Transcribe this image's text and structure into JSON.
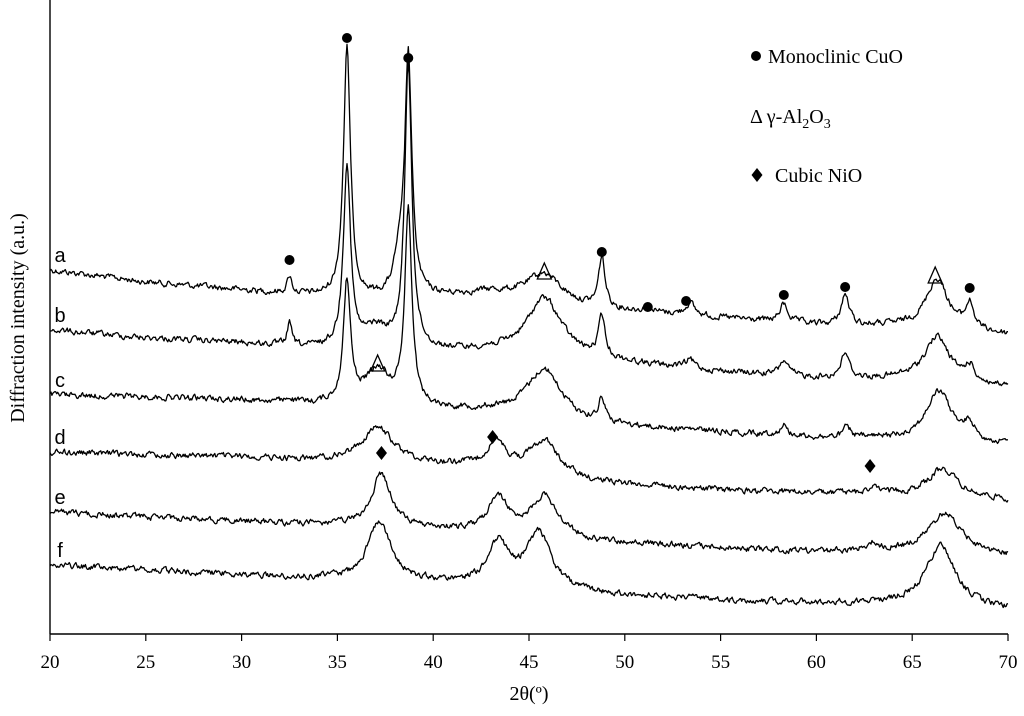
{
  "chart_data": {
    "type": "line",
    "xlabel": "2θ(º)",
    "ylabel": "Diffraction intensity (a.u.)",
    "xlim": [
      20,
      70
    ],
    "xticks": [
      20,
      25,
      30,
      35,
      40,
      45,
      50,
      55,
      60,
      65,
      70
    ],
    "grid": false,
    "legend_position": "top-right",
    "legend": [
      {
        "marker": "circle",
        "label": "Monoclinic CuO"
      },
      {
        "marker": "triangle",
        "label_prefix": "Δ γ-Al",
        "sub1": "2",
        "mid": "O",
        "sub2": "3"
      },
      {
        "marker": "diamond",
        "label": "Cubic NiO"
      }
    ],
    "series": [
      {
        "name": "a",
        "baseline": [
          [
            20,
            270
          ],
          [
            25,
            282
          ],
          [
            30,
            290
          ],
          [
            33,
            295
          ],
          [
            36,
            300
          ],
          [
            40,
            297
          ],
          [
            43,
            293
          ],
          [
            48,
            308
          ],
          [
            55,
            318
          ],
          [
            60,
            325
          ],
          [
            65,
            327
          ],
          [
            70,
            335
          ]
        ],
        "peaks": [
          [
            32.5,
            17,
            0.15
          ],
          [
            35.5,
            250,
            0.22
          ],
          [
            38.7,
            240,
            0.22
          ],
          [
            38.2,
            30,
            0.3
          ],
          [
            45.8,
            28,
            1.1
          ],
          [
            48.8,
            50,
            0.2
          ],
          [
            51.2,
            6,
            0.2
          ],
          [
            53.4,
            12,
            0.3
          ],
          [
            58.3,
            18,
            0.25
          ],
          [
            61.5,
            30,
            0.25
          ],
          [
            66.3,
            50,
            0.7
          ],
          [
            68.0,
            25,
            0.25
          ]
        ]
      },
      {
        "name": "b",
        "baseline": [
          [
            20,
            330
          ],
          [
            25,
            338
          ],
          [
            30,
            343
          ],
          [
            33,
            348
          ],
          [
            36,
            350
          ],
          [
            40,
            352
          ],
          [
            43,
            352
          ],
          [
            48,
            360
          ],
          [
            55,
            372
          ],
          [
            60,
            378
          ],
          [
            65,
            380
          ],
          [
            70,
            388
          ]
        ],
        "peaks": [
          [
            32.5,
            22,
            0.15
          ],
          [
            35.5,
            183,
            0.22
          ],
          [
            37.0,
            20,
            0.8
          ],
          [
            38.7,
            285,
            0.22
          ],
          [
            45.8,
            58,
            1.1
          ],
          [
            48.8,
            40,
            0.2
          ],
          [
            53.4,
            8,
            0.3
          ],
          [
            58.3,
            15,
            0.25
          ],
          [
            61.5,
            25,
            0.25
          ],
          [
            66.3,
            45,
            0.8
          ],
          [
            68.0,
            15,
            0.3
          ]
        ]
      },
      {
        "name": "c",
        "baseline": [
          [
            20,
            395
          ],
          [
            25,
            397
          ],
          [
            30,
            400
          ],
          [
            33,
            404
          ],
          [
            36,
            406
          ],
          [
            40,
            410
          ],
          [
            43,
            412
          ],
          [
            48,
            425
          ],
          [
            55,
            432
          ],
          [
            60,
            438
          ],
          [
            65,
            440
          ],
          [
            70,
            445
          ]
        ],
        "peaks": [
          [
            32.5,
            5,
            0.15
          ],
          [
            35.5,
            120,
            0.22
          ],
          [
            37.1,
            35,
            0.8
          ],
          [
            38.7,
            195,
            0.22
          ],
          [
            45.8,
            50,
            1.1
          ],
          [
            48.8,
            25,
            0.2
          ],
          [
            58.3,
            10,
            0.25
          ],
          [
            61.6,
            10,
            0.25
          ],
          [
            66.4,
            50,
            0.8
          ],
          [
            68.0,
            15,
            0.3
          ]
        ]
      },
      {
        "name": "d",
        "baseline": [
          [
            20,
            452
          ],
          [
            25,
            455
          ],
          [
            30,
            457
          ],
          [
            33,
            460
          ],
          [
            36,
            462
          ],
          [
            40,
            465
          ],
          [
            43,
            468
          ],
          [
            48,
            482
          ],
          [
            55,
            490
          ],
          [
            60,
            493
          ],
          [
            65,
            495
          ],
          [
            70,
            500
          ]
        ],
        "peaks": [
          [
            37.1,
            35,
            1.0
          ],
          [
            43.3,
            25,
            0.6
          ],
          [
            45.8,
            35,
            0.9
          ],
          [
            62.9,
            6,
            0.3
          ],
          [
            66.6,
            28,
            0.9
          ]
        ]
      },
      {
        "name": "e",
        "baseline": [
          [
            20,
            512
          ],
          [
            25,
            517
          ],
          [
            30,
            521
          ],
          [
            33,
            524
          ],
          [
            36,
            526
          ],
          [
            40,
            530
          ],
          [
            43,
            532
          ],
          [
            48,
            542
          ],
          [
            55,
            548
          ],
          [
            60,
            552
          ],
          [
            65,
            552
          ],
          [
            70,
            556
          ]
        ],
        "peaks": [
          [
            37.3,
            53,
            0.6
          ],
          [
            43.4,
            33,
            0.6
          ],
          [
            45.8,
            40,
            0.9
          ],
          [
            62.9,
            8,
            0.4
          ],
          [
            66.7,
            40,
            1.0
          ]
        ]
      },
      {
        "name": "f",
        "baseline": [
          [
            20,
            565
          ],
          [
            25,
            570
          ],
          [
            30,
            575
          ],
          [
            33,
            578
          ],
          [
            36,
            580
          ],
          [
            40,
            583
          ],
          [
            43,
            584
          ],
          [
            48,
            594
          ],
          [
            55,
            600
          ],
          [
            60,
            603
          ],
          [
            65,
            604
          ],
          [
            70,
            610
          ]
        ],
        "peaks": [
          [
            37.2,
            60,
            0.7
          ],
          [
            43.4,
            40,
            0.6
          ],
          [
            45.5,
            55,
            0.8
          ],
          [
            66.5,
            60,
            0.9
          ]
        ]
      }
    ],
    "annotations": [
      {
        "marker": "circle",
        "x": 32.5,
        "y": 260
      },
      {
        "marker": "circle",
        "x": 35.5,
        "y": 38
      },
      {
        "marker": "circle",
        "x": 38.7,
        "y": 58
      },
      {
        "marker": "circle",
        "x": 48.8,
        "y": 252
      },
      {
        "marker": "circle",
        "x": 51.2,
        "y": 307
      },
      {
        "marker": "circle",
        "x": 53.2,
        "y": 301
      },
      {
        "marker": "circle",
        "x": 58.3,
        "y": 295
      },
      {
        "marker": "circle",
        "x": 61.5,
        "y": 287
      },
      {
        "marker": "circle",
        "x": 68.0,
        "y": 288
      },
      {
        "marker": "triangle",
        "x": 45.8,
        "y": 272
      },
      {
        "marker": "triangle",
        "x": 66.2,
        "y": 276
      },
      {
        "marker": "triangle",
        "x": 37.1,
        "y": 364
      },
      {
        "marker": "diamond",
        "x": 43.1,
        "y": 437
      },
      {
        "marker": "diamond",
        "x": 37.3,
        "y": 453
      },
      {
        "marker": "diamond",
        "x": 62.8,
        "y": 466
      }
    ]
  }
}
